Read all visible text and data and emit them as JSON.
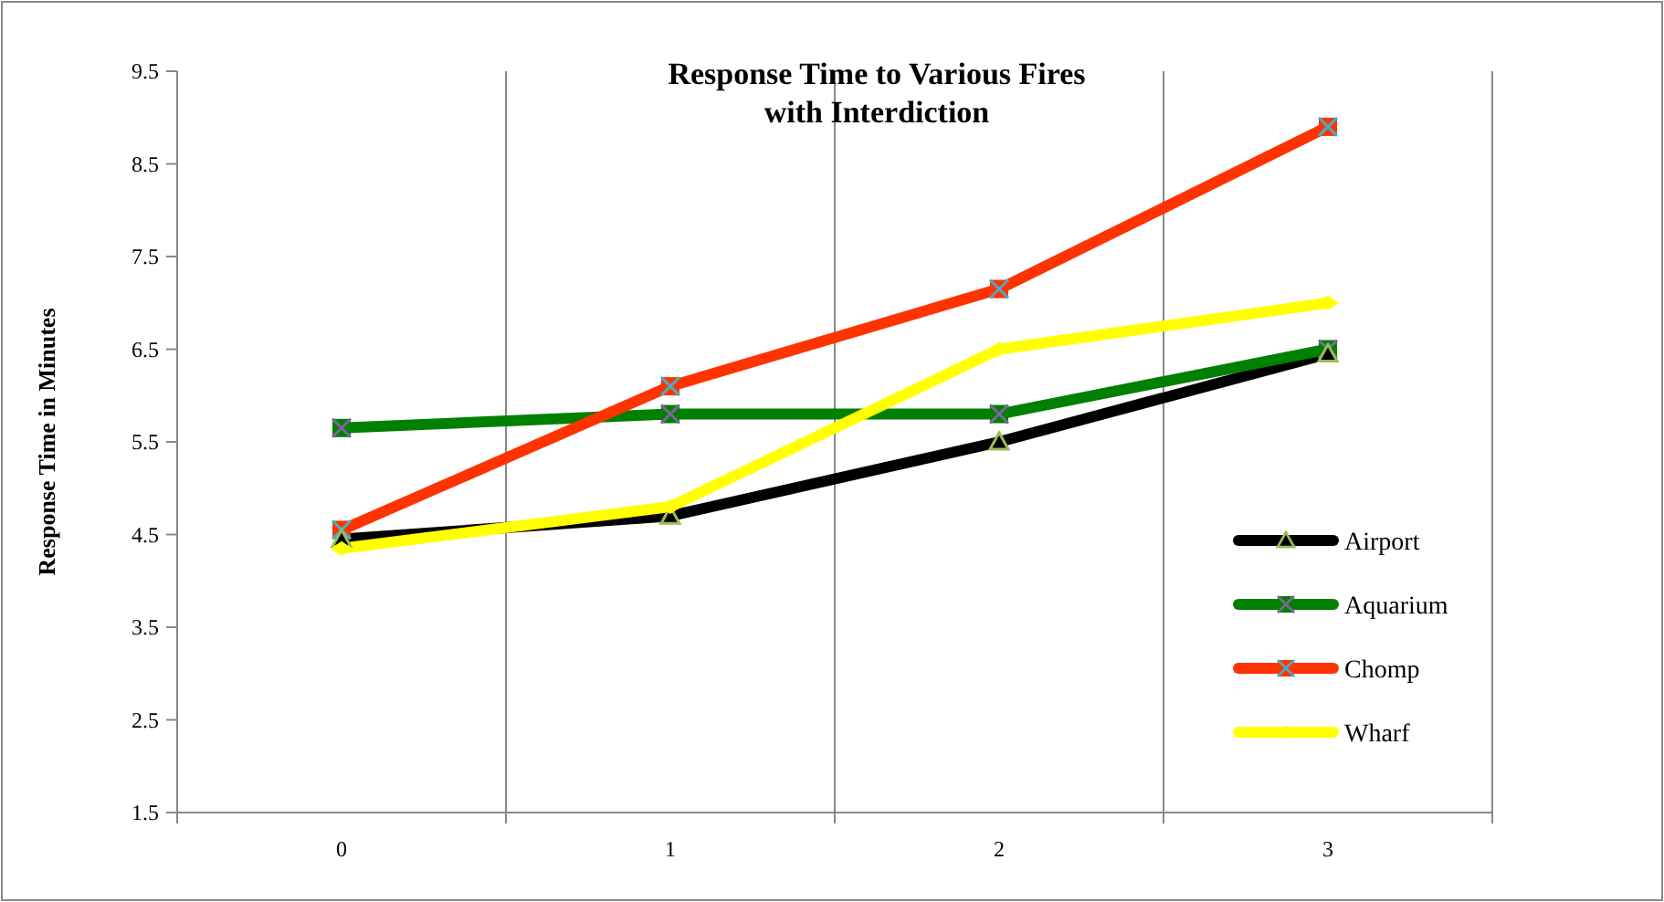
{
  "chart_data": {
    "type": "line",
    "title": "Response Time to Various Fires\nwith Interdiction",
    "ylabel": "Response Time in Minutes",
    "categories": [
      "0",
      "1",
      "2",
      "3"
    ],
    "ylim": [
      1.5,
      9.5
    ],
    "yticks": [
      1.5,
      2.5,
      3.5,
      4.5,
      5.5,
      6.5,
      7.5,
      8.5,
      9.5
    ],
    "grid": "x",
    "legend": "right",
    "series": [
      {
        "name": "Airport",
        "color": "#000000",
        "marker": "triangle",
        "values": [
          4.45,
          4.7,
          5.5,
          6.45
        ]
      },
      {
        "name": "Aquarium",
        "color": "#008000",
        "marker": "square",
        "values": [
          5.65,
          5.8,
          5.8,
          6.5
        ]
      },
      {
        "name": "Chomp",
        "color": "#ff3300",
        "marker": "square",
        "values": [
          4.55,
          6.1,
          7.15,
          8.9
        ]
      },
      {
        "name": "Wharf",
        "color": "#ffff00",
        "marker": "diamond",
        "values": [
          4.35,
          4.8,
          6.5,
          7.0
        ]
      }
    ]
  }
}
